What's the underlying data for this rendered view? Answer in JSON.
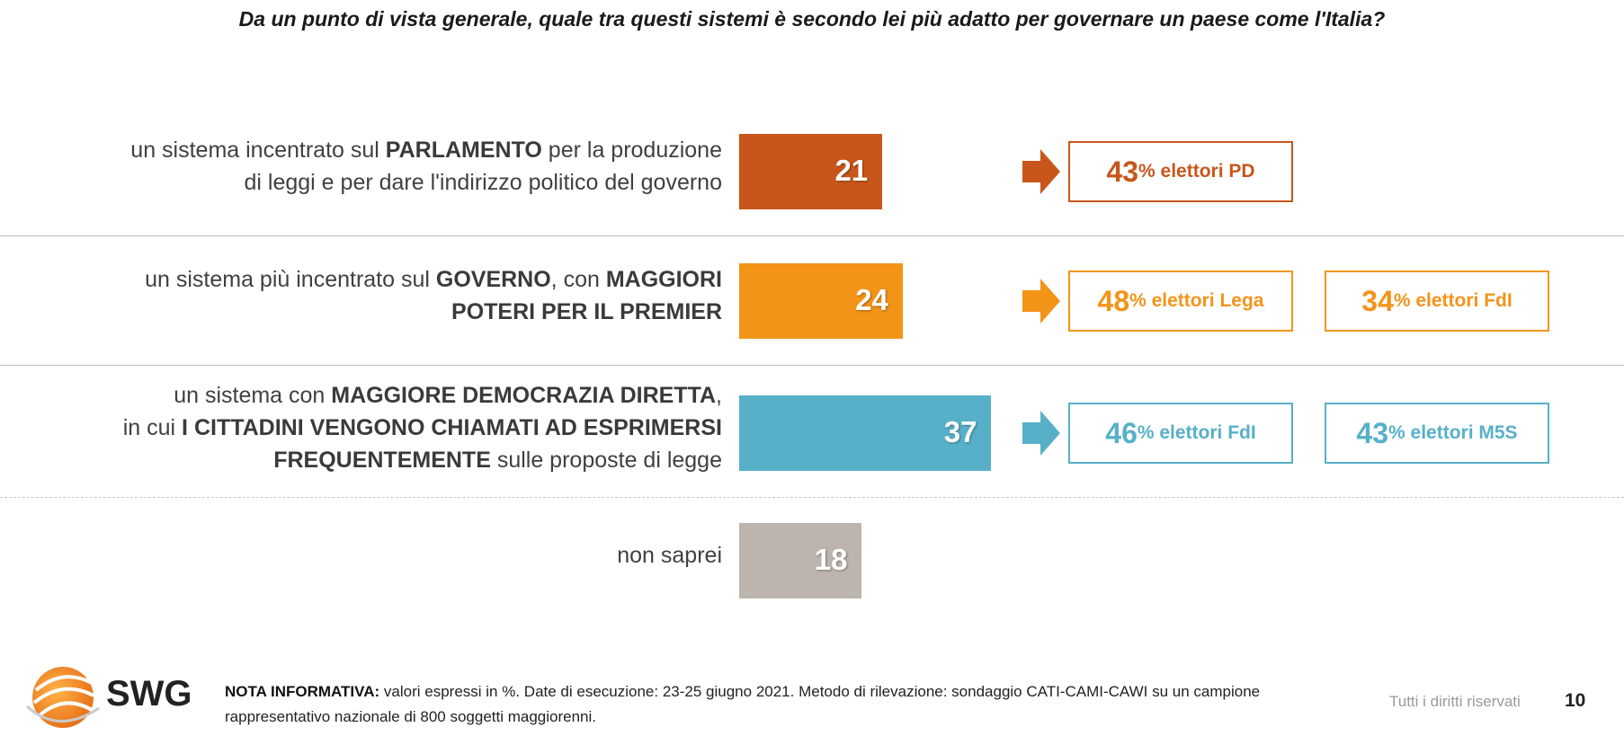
{
  "title": "Da un punto di vista generale, quale tra questi sistemi è secondo lei più adatto per governare un paese come l'Italia?",
  "chart_data": {
    "type": "bar",
    "orientation": "horizontal",
    "categories": [
      "un sistema incentrato sul PARLAMENTO per la produzione di leggi e per dare l'indirizzo politico del governo",
      "un sistema più incentrato sul GOVERNO, con MAGGIORI POTERI PER IL PREMIER",
      "un sistema con MAGGIORE DEMOCRAZIA DIRETTA, in cui I CITTADINI VENGONO CHIAMATI AD ESPRIMERSI FREQUENTEMENTE sulle proposte di legge",
      "non saprei"
    ],
    "values": [
      21,
      24,
      37,
      18
    ],
    "colors": [
      "#c8561b",
      "#f39419",
      "#57b0c8",
      "#bdb5ad"
    ],
    "label_lines": [
      [
        [
          {
            "t": "un sistema incentrato sul ",
            "b": false
          },
          {
            "t": "PARLAMENTO",
            "b": true
          },
          {
            "t": " per la produzione",
            "b": false
          }
        ],
        [
          {
            "t": "di leggi e per dare l'indirizzo politico del governo",
            "b": false
          }
        ]
      ],
      [
        [
          {
            "t": "un sistema più incentrato sul ",
            "b": false
          },
          {
            "t": "GOVERNO",
            "b": true
          },
          {
            "t": ", con ",
            "b": false
          },
          {
            "t": "MAGGIORI",
            "b": true
          }
        ],
        [
          {
            "t": "POTERI PER IL PREMIER",
            "b": true
          }
        ]
      ],
      [
        [
          {
            "t": "un sistema con ",
            "b": false
          },
          {
            "t": "MAGGIORE DEMOCRAZIA DIRETTA",
            "b": true
          },
          {
            "t": ",",
            "b": false
          }
        ],
        [
          {
            "t": "in cui ",
            "b": false
          },
          {
            "t": "I CITTADINI VENGONO CHIAMATI AD ESPRIMERSI",
            "b": true
          }
        ],
        [
          {
            "t": "FREQUENTEMENTE",
            "b": true
          },
          {
            "t": " sulle proposte di legge",
            "b": false
          }
        ]
      ],
      [
        [
          {
            "t": "non saprei",
            "b": false
          }
        ]
      ]
    ],
    "annotations": [
      [
        {
          "pct": "43",
          "text": "% elettori PD"
        }
      ],
      [
        {
          "pct": "48",
          "text": "% elettori Lega"
        },
        {
          "pct": "34",
          "text": "% elettori FdI"
        }
      ],
      [
        {
          "pct": "46",
          "text": "% elettori FdI"
        },
        {
          "pct": "43",
          "text": "% elettori M5S"
        }
      ],
      []
    ]
  },
  "footer": {
    "note_label": "NOTA INFORMATIVA:",
    "note_text": " valori espressi in %. Date di esecuzione: 23-25 giugno 2021. Metodo di rilevazione: sondaggio CATI-CAMI-CAWI su un campione rappresentativo nazionale di 800 soggetti maggiorenni.",
    "rights": "Tutti i diritti riservati",
    "page_number": "10",
    "logo_text": "SWG"
  }
}
